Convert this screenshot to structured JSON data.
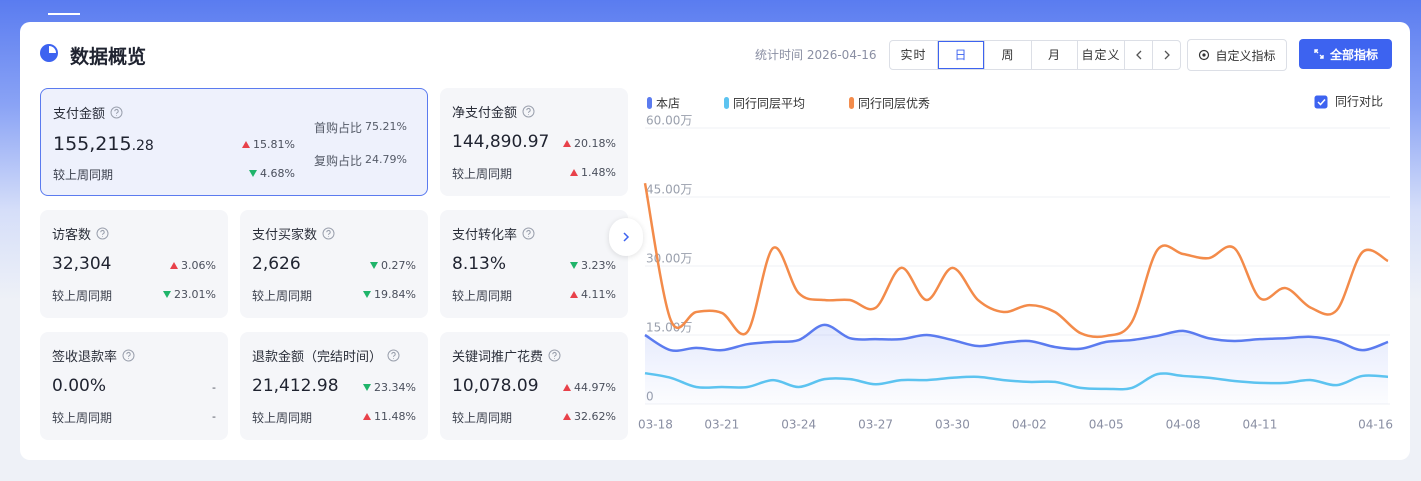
{
  "header": {
    "title": "数据概览",
    "stat_time": "统计时间 2026-04-16",
    "tabs": [
      "实时",
      "日",
      "周",
      "月",
      "自定义"
    ],
    "active_tab": 1,
    "buttons": [
      "自定义指标",
      "全部指标"
    ]
  },
  "metrics": [
    {
      "title": "支付金额",
      "value": "155,215",
      "value_decimal": ".28",
      "change": "15.81%",
      "change_dir": "up",
      "compare_label": "较上周同期",
      "compare": "4.68%",
      "compare_dir": "down",
      "extra": [
        {
          "label": "首购占比",
          "value": "75.21%"
        },
        {
          "label": "复购占比",
          "value": "24.79%"
        }
      ]
    },
    {
      "title": "净支付金额",
      "value": "144,890.97",
      "change": "20.18%",
      "change_dir": "up",
      "compare_label": "较上周同期",
      "compare": "1.48%",
      "compare_dir": "up"
    },
    {
      "title": "访客数",
      "value": "32,304",
      "change": "3.06%",
      "change_dir": "up",
      "compare_label": "较上周同期",
      "compare": "23.01%",
      "compare_dir": "down"
    },
    {
      "title": "支付买家数",
      "value": "2,626",
      "change": "0.27%",
      "change_dir": "down",
      "compare_label": "较上周同期",
      "compare": "19.84%",
      "compare_dir": "down"
    },
    {
      "title": "支付转化率",
      "value": "8.13%",
      "change": "3.23%",
      "change_dir": "down",
      "compare_label": "较上周同期",
      "compare": "4.11%",
      "compare_dir": "up"
    },
    {
      "title": "签收退款率",
      "value": "0.00%",
      "change": "-",
      "compare_label": "较上周同期",
      "compare": "-"
    },
    {
      "title": "退款金额（完结时间）",
      "value": "21,412.98",
      "change": "23.34%",
      "change_dir": "down",
      "compare_label": "较上周同期",
      "compare": "11.48%",
      "compare_dir": "up"
    },
    {
      "title": "关键词推广花费",
      "value": "10,078.09",
      "change": "44.97%",
      "change_dir": "up",
      "compare_label": "较上周同期",
      "compare": "32.62%",
      "compare_dir": "up"
    }
  ],
  "chart_controls": {
    "label": "同行对比",
    "checked": true
  },
  "chart_data": {
    "type": "line",
    "categories": [
      "03-18",
      null,
      null,
      "03-21",
      null,
      null,
      "03-24",
      null,
      null,
      "03-27",
      null,
      null,
      "03-30",
      null,
      null,
      "04-02",
      null,
      null,
      "04-05",
      null,
      null,
      "04-08",
      null,
      null,
      "04-11",
      null,
      null,
      null,
      null,
      "04-16"
    ],
    "series": [
      {
        "name": "本店",
        "color": "#5b7bef",
        "area": true,
        "values": [
          15,
          11.7,
          12.2,
          11.7,
          13,
          13.5,
          13.9,
          17.2,
          14.3,
          14.1,
          14.1,
          15,
          13.9,
          12.6,
          13.3,
          13.7,
          12.4,
          12,
          13.5,
          13.9,
          14.8,
          15.9,
          14.3,
          13.7,
          14.1,
          14.3,
          14.6,
          13.7,
          11.7,
          13.5
        ]
      },
      {
        "name": "同行同层平均",
        "color": "#5cc3f0",
        "values": [
          6.7,
          5.7,
          3.7,
          3.7,
          3.7,
          5.2,
          3.7,
          5.4,
          5.4,
          4.3,
          5.2,
          5.2,
          5.7,
          5.9,
          5.2,
          4.8,
          4.8,
          3.5,
          3.3,
          3.5,
          6.5,
          6.1,
          5.7,
          5,
          4.6,
          4.6,
          5.2,
          4.1,
          6.1,
          5.9
        ]
      },
      {
        "name": "同行同层优秀",
        "color": "#f38b4a",
        "values": [
          48,
          18.3,
          20,
          19.8,
          15.7,
          33.9,
          24.1,
          22.6,
          22.6,
          20.9,
          29.6,
          22.6,
          29.6,
          22.6,
          20,
          21.5,
          20,
          15.4,
          14.8,
          17.8,
          33.5,
          32.6,
          31.7,
          33.9,
          23,
          25.2,
          20.9,
          20.4,
          33,
          31.1
        ]
      }
    ],
    "ylim": [
      0,
      60
    ],
    "yticks": [
      0,
      {
        "value": 15,
        "label": "15.00万"
      },
      {
        "value": 30,
        "label": "30.00万"
      },
      {
        "value": 45,
        "label": "45.00万"
      },
      {
        "value": 60,
        "label": "60.00万"
      }
    ],
    "grid": true
  }
}
